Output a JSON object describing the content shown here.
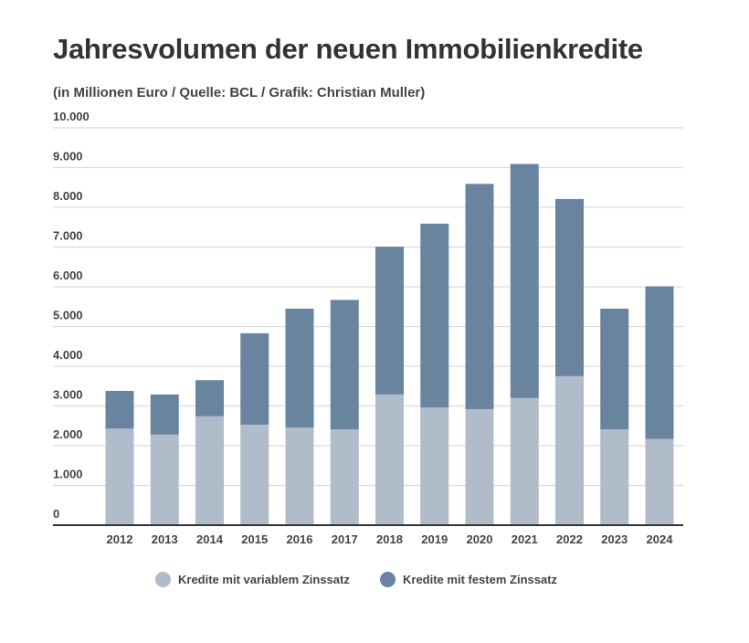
{
  "chart_data": {
    "type": "bar",
    "stacked": true,
    "title": "Jahresvolumen der neuen Immobilienkredite",
    "subtitle": "(in Millionen Euro / Quelle: BCL / Grafik: Christian Muller)",
    "xlabel": "",
    "ylabel": "",
    "ylim": [
      0,
      10000
    ],
    "yticks": [
      0,
      1000,
      2000,
      3000,
      4000,
      5000,
      6000,
      7000,
      8000,
      9000,
      10000
    ],
    "ytick_labels": [
      "0",
      "1.000",
      "2.000",
      "3.000",
      "4.000",
      "5.000",
      "6.000",
      "7.000",
      "8.000",
      "9.000",
      "10.000"
    ],
    "grid": true,
    "legend_position": "bottom",
    "categories": [
      "2012",
      "2013",
      "2014",
      "2015",
      "2016",
      "2017",
      "2018",
      "2019",
      "2020",
      "2021",
      "2022",
      "2023",
      "2024"
    ],
    "series": [
      {
        "name": "Kredite mit variablem Zinssatz",
        "color": "#b1bccb",
        "values": [
          2430,
          2280,
          2740,
          2530,
          2460,
          2410,
          3290,
          2960,
          2920,
          3200,
          3750,
          2410,
          2170
        ]
      },
      {
        "name": "Kredite mit festem Zinssatz",
        "color": "#68849e",
        "values": [
          950,
          1010,
          910,
          2300,
          2990,
          3260,
          3720,
          4630,
          5670,
          5890,
          4460,
          3040,
          3840
        ]
      }
    ]
  }
}
